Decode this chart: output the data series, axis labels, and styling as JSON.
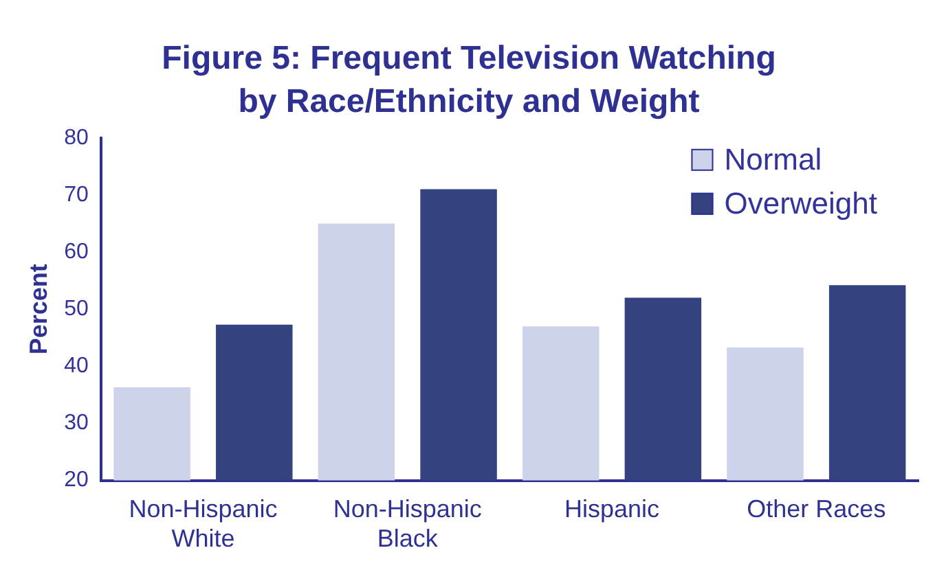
{
  "chart_data": {
    "type": "bar",
    "title": "Figure 5: Frequent Television Watching\nby Race/Ethnicity and Weight",
    "ylabel": "Percent",
    "categories": [
      "Non-Hispanic White",
      "Non-Hispanic Black",
      "Hispanic",
      "Other Races"
    ],
    "series": [
      {
        "name": "Normal",
        "color": "#ccd3ea",
        "values": [
          36.3,
          65,
          47,
          43.3
        ]
      },
      {
        "name": "Overweight",
        "color": "#344380",
        "values": [
          47.3,
          71,
          52,
          54.2
        ]
      }
    ],
    "ylim": [
      20,
      80
    ],
    "yticks": [
      20,
      30,
      40,
      50,
      60,
      70,
      80
    ],
    "grid": false,
    "legend": "top right"
  }
}
